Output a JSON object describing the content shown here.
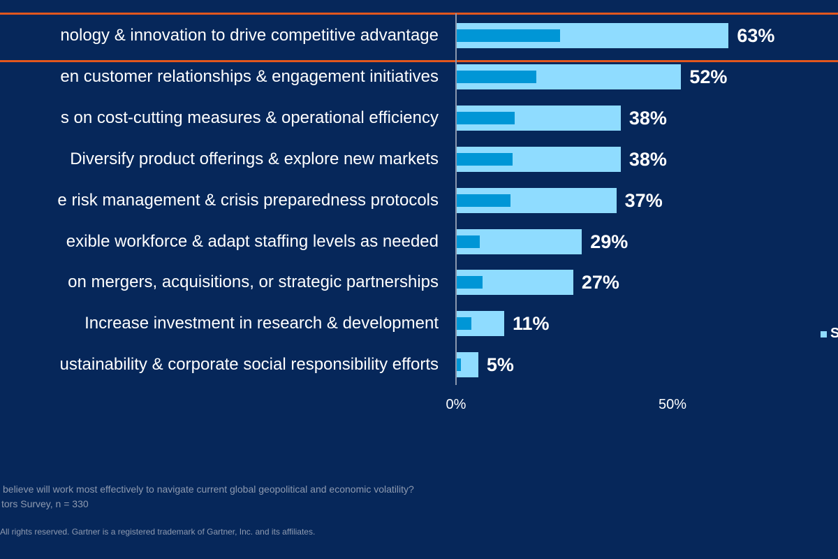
{
  "chart_data": {
    "type": "bar",
    "orientation": "horizontal",
    "categories": [
      "nology & innovation to drive competitive advantage",
      "en customer relationships & engagement initiatives",
      "s on cost-cutting measures & operational efficiency",
      "Diversify product offerings & explore new markets",
      "e risk management & crisis preparedness protocols",
      "exible workforce & adapt staffing levels as needed",
      "on mergers, acquisitions, or strategic partnerships",
      "Increase investment in research & development",
      "ustainability & corporate social responsibility efforts"
    ],
    "series": [
      {
        "name": "S",
        "values": [
          63,
          52,
          38,
          38,
          37,
          29,
          27,
          11,
          5
        ],
        "color": "#8fdcff"
      },
      {
        "values": [
          24,
          18.5,
          13.5,
          13,
          12.4,
          5.3,
          6,
          3.4,
          1
        ],
        "color": "#0096d6"
      }
    ],
    "data_labels": [
      "63%",
      "52%",
      "38%",
      "38%",
      "37%",
      "29%",
      "27%",
      "11%",
      "5%"
    ],
    "xlim": [
      0,
      100
    ],
    "xticks": [
      "0%",
      "50%"
    ],
    "highlight_row": 0,
    "highlight_color": "#e2571e",
    "legend": "right",
    "grid": false
  },
  "footer": {
    "question": "believe will work most effectively to navigate current global geopolitical and economic volatility?",
    "source": "tors Survey, n = 330",
    "copyright": "All rights reserved. Gartner is a registered trademark of Gartner, Inc. and its affiliates."
  }
}
